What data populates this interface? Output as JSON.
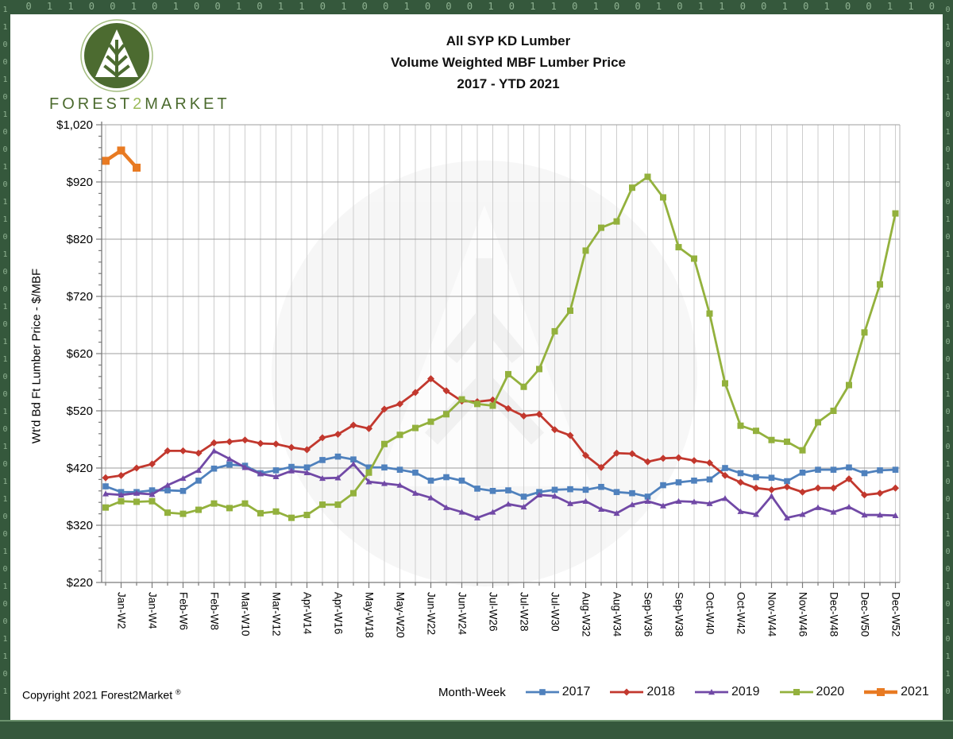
{
  "frame": {
    "border_color": "#35583c",
    "digit_color": "#8fb292",
    "top_digits": "1 0  1 1 0 0 1 0  1 0 0 1  0 1 1 0 1 0 0  1 0 0 0 1 0  1 1 0 1 0  0 1 0 1 1 0 0  1 0 1 0 0 1  1 0 1 0 0 1 1 0  1 0 0 1 0",
    "left_digits": "1\n1\n0\n0\n1\n0\n1\n0\n0\n1\n0\n1\n1\n0\n1\n0\n0\n1\n0\n1\n1\n0\n0\n1\n0\n1\n0\n1\n1\n0\n0\n1\n0\n1\n0\n0\n1\n1\n0\n1",
    "right_digits": "0\n1\n0\n0\n1\n1\n0\n1\n0\n1\n0\n0\n1\n0\n1\n1\n0\n0\n1\n0\n0\n1\n1\n0\n1\n0\n1\n0\n0\n1\n1\n0\n0\n1\n0\n1\n0\n1\n1\n0"
  },
  "logo": {
    "brand_forest": "FOREST",
    "brand_2": "2",
    "brand_market": "MARKET",
    "circle_color": "#4c6b30",
    "ring_color": "#a3bd7f",
    "text_color": "#4b6a2e",
    "accent_color": "#9bbb59"
  },
  "title": {
    "line1": "All SYP KD Lumber",
    "line2": "Volume Weighted MBF Lumber Price",
    "line3": "2017 - YTD 2021"
  },
  "footer": {
    "copyright": "Copyright 2021 Forest2Market",
    "registered": "®"
  },
  "chart_data": {
    "type": "line",
    "title": "All SYP KD Lumber — Volume Weighted MBF Lumber Price, 2017 - YTD 2021",
    "xlabel": "Month-Week",
    "ylabel": "Wt'd Bd Ft Lumber Price - $/MBF",
    "ylim": [
      220,
      1020
    ],
    "y_tick_step": 100,
    "y_minor_tick_step": 20,
    "y_tick_labels": [
      "$220",
      "$320",
      "$420",
      "$520",
      "$620",
      "$720",
      "$820",
      "$920",
      "$1,020"
    ],
    "x_weeks": 52,
    "x_tick_labels": [
      "Jan-W2",
      "Jan-W4",
      "Feb-W6",
      "Feb-W8",
      "Mar-W10",
      "Mar-W12",
      "Apr-W14",
      "Apr-W16",
      "May-W18",
      "May-W20",
      "Jun-W22",
      "Jun-W24",
      "Jul-W26",
      "Jul-W28",
      "Jul-W30",
      "Aug-W32",
      "Aug-W34",
      "Sep-W36",
      "Sep-W38",
      "Oct-W40",
      "Oct-W42",
      "Nov-W44",
      "Nov-W46",
      "Dec-W48",
      "Dec-W50",
      "Dec-W52"
    ],
    "grid": "vertical weekly, horizontal every $100",
    "legend_position": "bottom",
    "series": [
      {
        "name": "2017",
        "color": "#4F81BD",
        "marker": "square",
        "marker_size": 3.8,
        "line_width": 2.8,
        "values": [
          388,
          378,
          378,
          381,
          381,
          380,
          398,
          419,
          426,
          424,
          411,
          416,
          422,
          421,
          434,
          440,
          435,
          421,
          421,
          417,
          412,
          398,
          404,
          398,
          384,
          380,
          381,
          370,
          378,
          382,
          383,
          382,
          387,
          378,
          376,
          370,
          390,
          395,
          398,
          400,
          420,
          411,
          404,
          403,
          397,
          412,
          417,
          417,
          421,
          411,
          416,
          417
        ]
      },
      {
        "name": "2018",
        "color": "#C2382E",
        "marker": "diamond",
        "marker_size": 3.2,
        "line_width": 2.8,
        "values": [
          403,
          407,
          420,
          427,
          450,
          450,
          446,
          464,
          466,
          469,
          463,
          462,
          456,
          452,
          473,
          479,
          495,
          489,
          523,
          532,
          552,
          576,
          555,
          537,
          536,
          539,
          524,
          511,
          514,
          487,
          477,
          442,
          421,
          446,
          445,
          431,
          437,
          438,
          433,
          429,
          407,
          395,
          385,
          382,
          387,
          378,
          385,
          385,
          401,
          373,
          376,
          385
        ]
      },
      {
        "name": "2019",
        "color": "#7149A6",
        "marker": "triangle",
        "marker_size": 4.0,
        "line_width": 2.8,
        "values": [
          375,
          373,
          376,
          374,
          390,
          402,
          416,
          450,
          436,
          421,
          410,
          405,
          415,
          412,
          402,
          403,
          427,
          396,
          393,
          390,
          376,
          368,
          351,
          343,
          333,
          343,
          357,
          352,
          373,
          371,
          358,
          362,
          348,
          341,
          356,
          362,
          354,
          362,
          361,
          358,
          367,
          344,
          339,
          371,
          333,
          339,
          351,
          343,
          352,
          338,
          338,
          337
        ]
      },
      {
        "name": "2020",
        "color": "#93B13D",
        "marker": "square",
        "marker_size": 4.0,
        "line_width": 2.8,
        "values": [
          351,
          362,
          361,
          362,
          342,
          340,
          347,
          358,
          350,
          358,
          341,
          344,
          333,
          338,
          356,
          356,
          376,
          412,
          462,
          478,
          490,
          501,
          514,
          540,
          532,
          529,
          584,
          562,
          593,
          659,
          695,
          800,
          840,
          851,
          910,
          929,
          893,
          806,
          786,
          690,
          568,
          494,
          485,
          469,
          466,
          451,
          500,
          520,
          565,
          657,
          741,
          865
        ]
      },
      {
        "name": "2021",
        "color": "#E87A22",
        "marker": "square",
        "marker_size": 5.0,
        "line_width": 4.5,
        "values": [
          957,
          975,
          945
        ]
      }
    ]
  }
}
